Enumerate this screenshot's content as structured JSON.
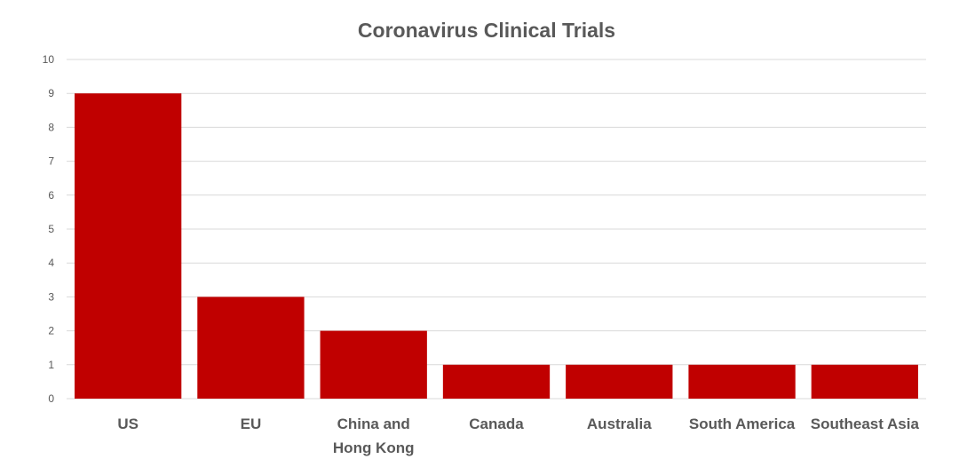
{
  "chart_data": {
    "type": "bar",
    "title": "Coronavirus Clinical Trials",
    "xlabel": "",
    "ylabel": "",
    "categories": [
      "US",
      "EU",
      "China and\nHong Kong",
      "Canada",
      "Australia",
      "South America",
      "Southeast Asia"
    ],
    "values": [
      9,
      3,
      2,
      1,
      1,
      1,
      1
    ],
    "ylim": [
      0,
      10
    ],
    "yticks": [
      "0",
      "1",
      "2",
      "3",
      "4",
      "5",
      "6",
      "7",
      "8",
      "9",
      "10"
    ],
    "grid": true,
    "legend": "none",
    "bar_color": "#c00000"
  }
}
